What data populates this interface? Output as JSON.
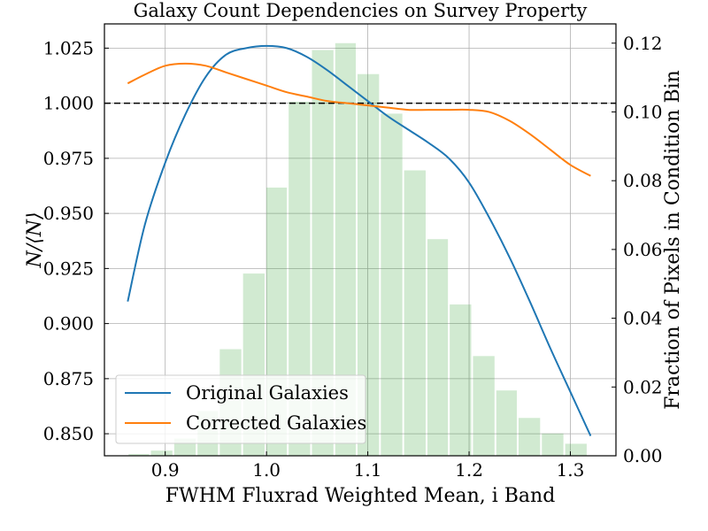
{
  "chart_data": {
    "type": "line",
    "title": "Galaxy Count Dependencies on Survey Property",
    "xlabel": "FWHM Fluxrad Weighted Mean, i Band",
    "ylabel": "N/⟨N⟩",
    "y2label": "Fraction of Pixels in Condition Bin",
    "xlim": [
      0.84,
      1.345
    ],
    "ylim": [
      0.84,
      1.036
    ],
    "y2lim": [
      0.0,
      0.1256
    ],
    "xticks": [
      "0.9",
      "1.0",
      "1.1",
      "1.2",
      "1.3"
    ],
    "xtick_values": [
      0.9,
      1.0,
      1.1,
      1.2,
      1.3
    ],
    "yticks": [
      "0.850",
      "0.875",
      "0.900",
      "0.925",
      "0.950",
      "0.975",
      "1.000",
      "1.025"
    ],
    "ytick_values": [
      0.85,
      0.875,
      0.9,
      0.925,
      0.95,
      0.975,
      1.0,
      1.025
    ],
    "y2ticks": [
      "0.00",
      "0.02",
      "0.04",
      "0.06",
      "0.08",
      "0.10",
      "0.12"
    ],
    "y2tick_values": [
      0.0,
      0.02,
      0.04,
      0.06,
      0.08,
      0.1,
      0.12
    ],
    "grid": true,
    "legend_position": "lower-left",
    "reference_line": {
      "y": 1.0,
      "style": "dashed",
      "color": "#000000"
    },
    "series": [
      {
        "name": "Original Galaxies",
        "color": "#1f77b4",
        "x": [
          0.863,
          0.88,
          0.9,
          0.92,
          0.94,
          0.96,
          0.98,
          1.0,
          1.02,
          1.04,
          1.06,
          1.08,
          1.1,
          1.12,
          1.14,
          1.16,
          1.18,
          1.2,
          1.22,
          1.24,
          1.26,
          1.28,
          1.3,
          1.32
        ],
        "y": [
          0.91,
          0.945,
          0.973,
          0.995,
          1.012,
          1.022,
          1.025,
          1.026,
          1.025,
          1.021,
          1.015,
          1.008,
          1.001,
          0.994,
          0.988,
          0.982,
          0.975,
          0.964,
          0.948,
          0.93,
          0.91,
          0.889,
          0.869,
          0.849
        ]
      },
      {
        "name": "Corrected Galaxies",
        "color": "#ff7f0e",
        "x": [
          0.863,
          0.88,
          0.9,
          0.92,
          0.94,
          0.96,
          0.98,
          1.0,
          1.02,
          1.04,
          1.06,
          1.08,
          1.1,
          1.12,
          1.14,
          1.16,
          1.18,
          1.2,
          1.22,
          1.24,
          1.26,
          1.28,
          1.3,
          1.32
        ],
        "y": [
          1.009,
          1.013,
          1.017,
          1.018,
          1.017,
          1.014,
          1.011,
          1.008,
          1.005,
          1.003,
          1.001,
          1.0,
          0.999,
          0.998,
          0.997,
          0.997,
          0.997,
          0.997,
          0.996,
          0.992,
          0.986,
          0.979,
          0.972,
          0.967
        ]
      }
    ],
    "histogram": {
      "axis": "right",
      "color": "#2ca02c",
      "opacity": 0.22,
      "bin_edges": [
        0.863,
        0.885,
        0.908,
        0.931,
        0.953,
        0.976,
        0.999,
        1.021,
        1.044,
        1.067,
        1.089,
        1.112,
        1.135,
        1.158,
        1.18,
        1.203,
        1.226,
        1.248,
        1.271,
        1.294,
        1.317
      ],
      "values": [
        0.0005,
        0.0015,
        0.005,
        0.013,
        0.031,
        0.053,
        0.078,
        0.103,
        0.118,
        0.12,
        0.111,
        0.0995,
        0.083,
        0.063,
        0.044,
        0.029,
        0.019,
        0.011,
        0.0065,
        0.0035
      ]
    }
  }
}
